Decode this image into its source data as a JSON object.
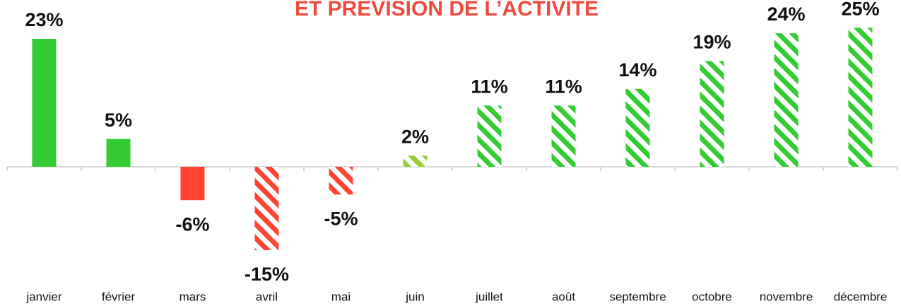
{
  "chart_data": {
    "type": "bar",
    "title": "ET PRÉVISION DE L’ACTIVITÉ",
    "categories": [
      "janvier",
      "février",
      "mars",
      "avril",
      "mai",
      "juin",
      "juillet",
      "août",
      "septembre",
      "octobre",
      "novembre",
      "décembre"
    ],
    "values": [
      23,
      5,
      -6,
      -15,
      -5,
      2,
      11,
      11,
      14,
      19,
      24,
      25
    ],
    "value_labels": [
      "23%",
      "5%",
      "-6%",
      "-15%",
      "-5%",
      "2%",
      "11%",
      "11%",
      "14%",
      "19%",
      "24%",
      "25%"
    ],
    "colors": [
      "#33cc33",
      "#33cc33",
      "#ff4433",
      "#ff4433",
      "#ff4433",
      "#99cc33",
      "#33cc33",
      "#33cc33",
      "#33cc33",
      "#33cc33",
      "#33cc33",
      "#33cc33"
    ],
    "hatched": [
      false,
      false,
      false,
      true,
      true,
      true,
      true,
      true,
      true,
      true,
      true,
      true
    ]
  }
}
